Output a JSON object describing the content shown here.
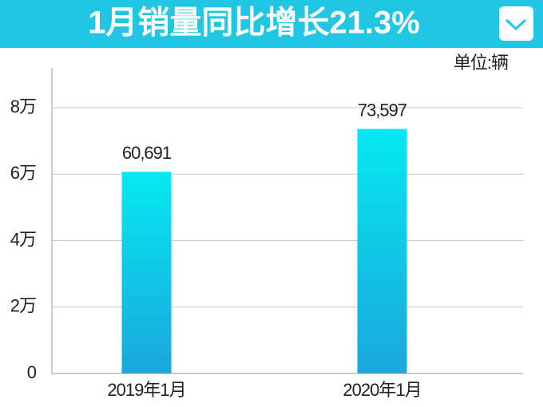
{
  "chart_data": {
    "type": "bar",
    "title": "1月销量同比增长21.3%",
    "unit_label": "单位:辆",
    "categories": [
      "2019年1月",
      "2020年1月"
    ],
    "values": [
      60691,
      73597
    ],
    "value_labels": [
      "60,691",
      "73,597"
    ],
    "color": [
      "#05e9f1",
      "#1aa7dc"
    ],
    "ylim": [
      0,
      92000
    ],
    "yticks": [
      0,
      {
        "value": 20000,
        "label": "2万"
      },
      {
        "value": 40000,
        "label": "4万"
      },
      {
        "value": 60000,
        "label": "6万"
      },
      {
        "value": 80000,
        "label": "8万"
      }
    ],
    "grid": true
  }
}
